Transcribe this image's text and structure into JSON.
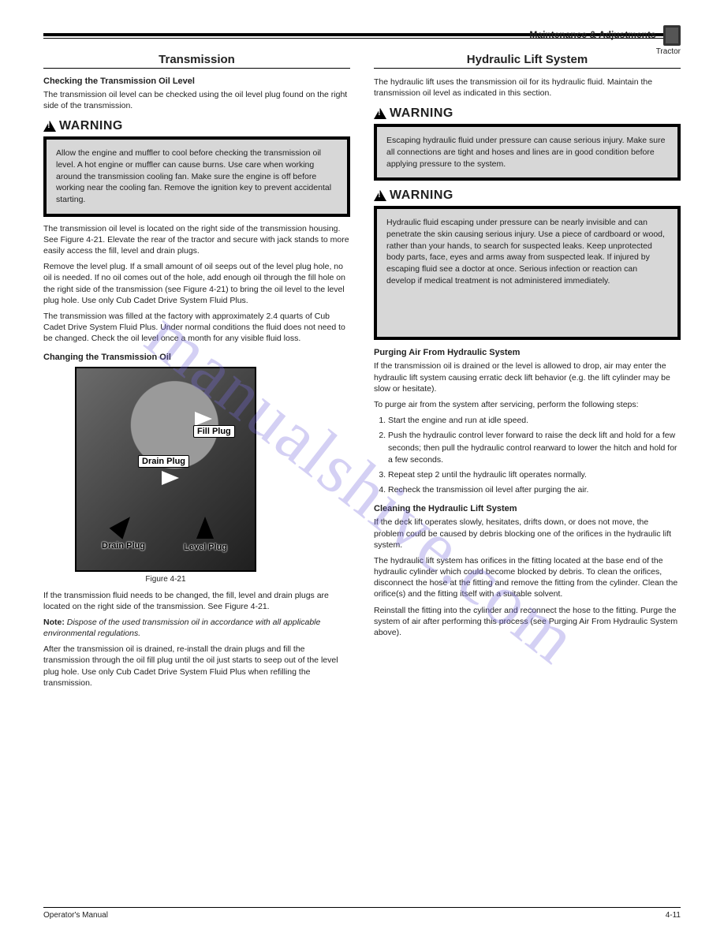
{
  "header": {
    "section": "Maintenance & Adjustments",
    "page_label": "Tractor"
  },
  "left": {
    "title": "Transmission",
    "sub1": "Checking the Transmission Oil Level",
    "intro": "The transmission oil level can be checked using the oil level plug found on the right side of the transmission.",
    "warning": "Allow the engine and muffler to cool before checking the transmission oil level. A hot engine or muffler can cause burns. Use care when working around the transmission cooling fan. Make sure the engine is off before working near the cooling fan. Remove the ignition key to prevent accidental starting.",
    "p1": "The transmission oil level is located on the right side of the transmission housing. See Figure 4-21. Elevate the rear of the tractor and secure with jack stands to more easily access the fill, level and drain plugs.",
    "p2": "Remove the level plug. If a small amount of oil seeps out of the level plug hole, no oil is needed. If no oil comes out of the hole, add enough oil through the fill hole on the right side of the transmission (see Figure 4-21) to bring the oil level to the level plug hole. Use only Cub Cadet Drive System Fluid Plus.",
    "p3": "The transmission was filled at the factory with approximately 2.4 quarts of Cub Cadet Drive System Fluid Plus. Under normal conditions the fluid does not need to be changed. Check the oil level once a month for any visible fluid loss.",
    "sub2": "Changing the Transmission Oil",
    "fig_labels": {
      "fill": "Fill Plug",
      "drain1": "Drain Plug",
      "drain2": "Drain Plug",
      "level": "Level Plug"
    },
    "caption": "Figure 4-21",
    "p4": "If the transmission fluid needs to be changed, the fill, level and drain plugs are located on the right side of the transmission. See Figure 4-21.",
    "note": "Note: Dispose of the used transmission oil in accordance with all applicable environmental regulations.",
    "p5": "After the transmission oil is drained, re-install the drain plugs and fill the transmission through the oil fill plug until the oil just starts to seep out of the level plug hole. Use only Cub Cadet Drive System Fluid Plus when refilling the transmission."
  },
  "right": {
    "title": "Hydraulic Lift System",
    "intro": "The hydraulic lift uses the transmission oil for its hydraulic fluid. Maintain the transmission oil level as indicated in this section.",
    "warning1": "Escaping hydraulic fluid under pressure can cause serious injury. Make sure all connections are tight and hoses and lines are in good condition before applying pressure to the system.",
    "warning2": "Hydraulic fluid escaping under pressure can be nearly invisible and can penetrate the skin causing serious injury. Use a piece of cardboard or wood, rather than your hands, to search for suspected leaks. Keep unprotected body parts, face, eyes and arms away from suspected leak. If injured by escaping fluid see a doctor at once. Serious infection or reaction can develop if medical treatment is not administered immediately.",
    "sub_purge": "Purging Air From Hydraulic System",
    "p_purge1": "If the transmission oil is drained or the level is allowed to drop, air may enter the hydraulic lift system causing erratic deck lift behavior (e.g. the lift cylinder may be slow or hesitate).",
    "p_purge2": "To purge air from the system after servicing, perform the following steps:",
    "steps": [
      "Start the engine and run at idle speed.",
      "Push the hydraulic control lever forward to raise the deck lift and hold for a few seconds; then pull the hydraulic control rearward to lower the hitch and hold for a few seconds.",
      "Repeat step 2 until the hydraulic lift operates normally.",
      "Recheck the transmission oil level after purging the air."
    ],
    "sub_clean": "Cleaning the Hydraulic Lift System",
    "p_clean1": "If the deck lift operates slowly, hesitates, drifts down, or does not move, the problem could be caused by debris blocking one of the orifices in the hydraulic lift system.",
    "p_clean2": "The hydraulic lift system has orifices in the fitting located at the base end of the hydraulic cylinder which could become blocked by debris. To clean the orifices, disconnect the hose at the fitting and remove the fitting from the cylinder. Clean the orifice(s) and the fitting itself with a suitable solvent.",
    "p_clean3": "Reinstall the fitting into the cylinder and reconnect the hose to the fitting. Purge the system of air after performing this process (see Purging Air From Hydraulic System above)."
  },
  "footer": {
    "left": "Operator's Manual",
    "right": "4-11"
  },
  "watermark": "manualshive.com",
  "colors": {
    "box_bg": "#d7d7d7",
    "border": "#000000",
    "text": "#222222",
    "watermark": "rgba(120,110,220,0.32)"
  }
}
